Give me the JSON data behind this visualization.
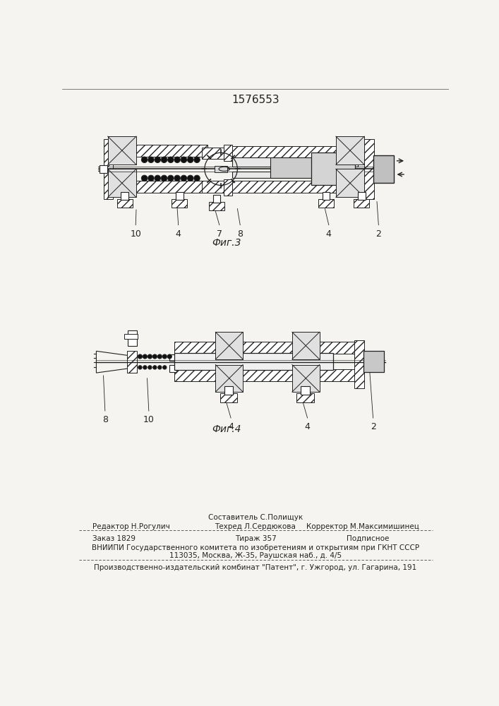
{
  "patent_number": "1576553",
  "fig3_label": "Фиг.3",
  "fig4_label": "Фиг.4",
  "footer_line1_left": "Редактор Н.Рогулич",
  "footer_line1_center": "Техред Л.Сердюкова",
  "footer_line1_right": "Корректор М.Максимишинец",
  "footer_sestavitel": "Составитель С.Полищук",
  "footer_zakaz": "Заказ 1829",
  "footer_tirazh": "Тираж 357",
  "footer_podpisnoe": "Подписное",
  "footer_vniip1": "ВНИИПИ Государственного комитета по изобретениям и открытиям при ГКНТ СССР",
  "footer_vniip2": "113035, Москва, Ж-35, Раушская наб., д. 4/5",
  "footer_proizv": "Производственно-издательский комбинат \"Патент\", г. Ужгород, ул. Гагарина, 191",
  "bg_color": "#f5f4f1",
  "line_color": "#222222",
  "white": "#ffffff"
}
